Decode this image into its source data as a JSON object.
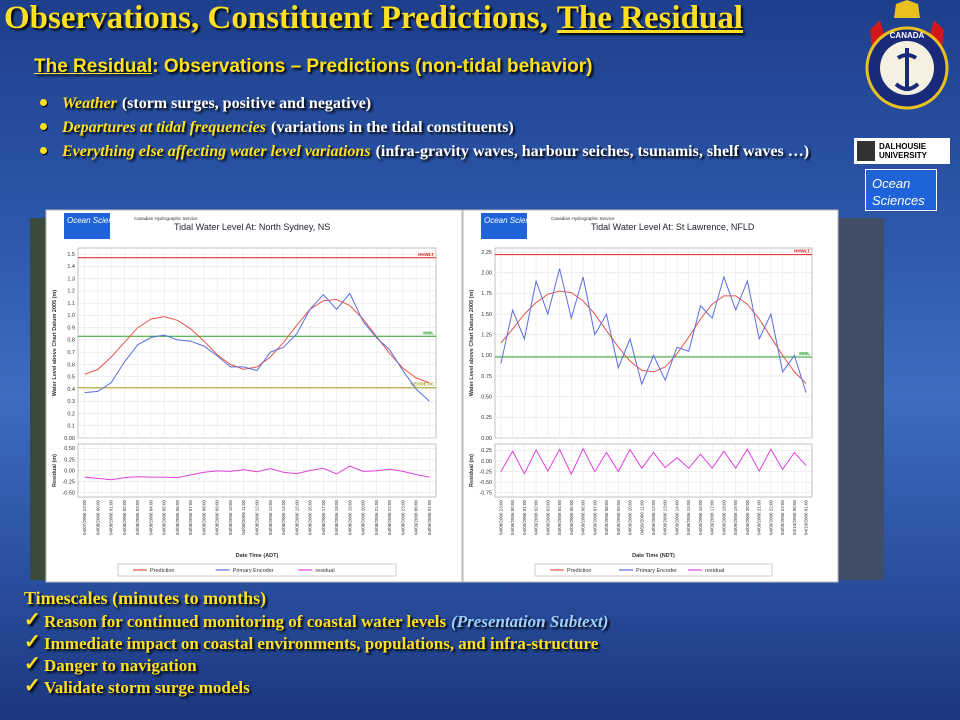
{
  "title": {
    "text": "Observations, Constituent Predictions,",
    "underlined": "The Residual"
  },
  "subtitle": {
    "underlined": "The Residual",
    "text": ": Observations – Predictions (non-tidal behavior)"
  },
  "bullets": [
    {
      "italic": "Weather",
      "text": "(storm surges, positive and negative)"
    },
    {
      "italic": "Departures at tidal frequencies",
      "text": "(variations in the tidal constituents)"
    },
    {
      "italic": "Everything else affecting water level variations",
      "text": "(infra-gravity waves, harbour seiches, tsunamis, shelf waves …)"
    }
  ],
  "logos": {
    "crest": "CANADA",
    "university": "DALHOUSIE UNIVERSITY",
    "department": "Ocean Sciences"
  },
  "charts": [
    {
      "header_logo": "Ocean Sciences",
      "agency": "Canadian Hydrographic Service",
      "title": "Tidal Water Level At: North Sydney, NS",
      "y_label": "Water Level above Chart Datum 2005 (m)",
      "x_label": "Date Time (ADT)",
      "x": [
        0,
        1,
        2,
        3,
        4,
        5,
        6,
        7,
        8,
        9,
        10,
        11,
        12,
        13,
        14,
        15,
        16,
        17,
        18,
        19,
        20,
        21,
        22,
        23,
        24,
        25,
        26
      ],
      "xlim": [
        -0.5,
        26.5
      ],
      "xticks": [
        {
          "value": 0,
          "label": "04/07/2006 23:00"
        },
        {
          "value": 1,
          "label": "04/08/2006 00:00"
        },
        {
          "value": 2,
          "label": "04/08/2006 01:00"
        },
        {
          "value": 3,
          "label": "04/08/2006 02:00"
        },
        {
          "value": 4,
          "label": "04/08/2006 03:00"
        },
        {
          "value": 5,
          "label": "04/08/2006 04:00"
        },
        {
          "value": 6,
          "label": "04/08/2006 05:00"
        },
        {
          "value": 7,
          "label": "04/08/2006 06:00"
        },
        {
          "value": 8,
          "label": "04/08/2006 07:00"
        },
        {
          "value": 9,
          "label": "04/08/2006 08:00"
        },
        {
          "value": 10,
          "label": "04/08/2006 09:00"
        },
        {
          "value": 11,
          "label": "04/08/2006 10:00"
        },
        {
          "value": 12,
          "label": "04/08/2006 11:00"
        },
        {
          "value": 13,
          "label": "04/08/2006 12:00"
        },
        {
          "value": 14,
          "label": "04/08/2006 13:00"
        },
        {
          "value": 15,
          "label": "04/08/2006 14:00"
        },
        {
          "value": 16,
          "label": "04/08/2006 15:00"
        },
        {
          "value": 17,
          "label": "04/08/2006 16:00"
        },
        {
          "value": 18,
          "label": "04/08/2006 17:00"
        },
        {
          "value": 19,
          "label": "04/08/2006 18:00"
        },
        {
          "value": 20,
          "label": "04/08/2006 19:00"
        },
        {
          "value": 21,
          "label": "04/08/2006 20:00"
        },
        {
          "value": 22,
          "label": "04/08/2006 21:00"
        },
        {
          "value": 23,
          "label": "04/08/2006 22:00"
        },
        {
          "value": 24,
          "label": "04/08/2006 23:00"
        },
        {
          "value": 25,
          "label": "04/09/2006 00:00"
        },
        {
          "value": 26,
          "label": "04/09/2006 01:00"
        }
      ],
      "main": {
        "ylim": [
          0,
          1.55
        ],
        "yticks": [
          1.5,
          1.4,
          1.3,
          1.2,
          1.1,
          {
            "value": 1,
            "label": "1.0"
          },
          0.9,
          0.8,
          0.7,
          0.6,
          0.5,
          0.4,
          0.3,
          0.2,
          0.1,
          {
            "value": 0,
            "label": "0.00"
          }
        ],
        "series": [
          {
            "name": "Prediction",
            "color": "#e8554a",
            "values": [
              0.52,
              0.56,
              0.66,
              0.78,
              0.9,
              0.97,
              0.99,
              0.96,
              0.89,
              0.79,
              0.68,
              0.6,
              0.56,
              0.58,
              0.66,
              0.78,
              0.92,
              1.05,
              1.12,
              1.13,
              1.08,
              0.97,
              0.83,
              0.69,
              0.57,
              0.49,
              0.45
            ]
          },
          {
            "name": "Primary Encoder",
            "color": "#5a6ee0",
            "values": [
              0.37,
              0.38,
              0.45,
              0.62,
              0.76,
              0.82,
              0.84,
              0.8,
              0.79,
              0.75,
              0.67,
              0.58,
              0.58,
              0.55,
              0.7,
              0.74,
              0.85,
              1.05,
              1.17,
              1.05,
              1.18,
              0.95,
              0.82,
              0.72,
              0.55,
              0.4,
              0.3
            ]
          }
        ],
        "reference_lines": [
          {
            "label": "HHWLT",
            "value": 1.47,
            "color": "#e02020"
          },
          {
            "label": "MWL",
            "value": 0.83,
            "color": "#28a028"
          },
          {
            "label": "GEODETIC",
            "value": 0.41,
            "color": "#a0a020"
          }
        ]
      },
      "residual": {
        "y_label": "Residual (m)",
        "ylim": [
          -0.6,
          0.6
        ],
        "yticks": [
          {
            "value": 0.5,
            "label": "0.50"
          },
          0.25,
          {
            "value": 0,
            "label": "0.00"
          },
          -0.25,
          {
            "value": -0.5,
            "label": "-0.50"
          }
        ],
        "series": [
          {
            "name": "residual",
            "color": "#e040e0",
            "values": [
              -0.15,
              -0.18,
              -0.21,
              -0.16,
              -0.14,
              -0.15,
              -0.15,
              -0.16,
              -0.1,
              -0.04,
              -0.01,
              -0.02,
              0.02,
              -0.03,
              0.04,
              -0.04,
              -0.07,
              0,
              0.05,
              -0.08,
              0.1,
              -0.02,
              -0.01,
              0.03,
              -0.02,
              -0.09,
              -0.15
            ]
          }
        ]
      }
    },
    {
      "header_logo": "Ocean Sciences",
      "agency": "Canadian Hydrographic Service",
      "title": "Tidal Water Level At: St Lawrence, NFLD",
      "y_label": "Water Level above Chart Datum 2005 (m)",
      "x_label": "Date Time (NDT)",
      "x": [
        0,
        1,
        2,
        3,
        4,
        5,
        6,
        7,
        8,
        9,
        10,
        11,
        12,
        13,
        14,
        15,
        16,
        17,
        18,
        19,
        20,
        21,
        22,
        23,
        24,
        25,
        26
      ],
      "xlim": [
        -0.5,
        26.5
      ],
      "xticks": [
        {
          "value": 0,
          "label": "04/08/2006 23:00"
        },
        {
          "value": 1,
          "label": "04/09/2006 00:00"
        },
        {
          "value": 2,
          "label": "04/09/2006 01:00"
        },
        {
          "value": 3,
          "label": "04/09/2006 02:00"
        },
        {
          "value": 4,
          "label": "04/09/2006 03:00"
        },
        {
          "value": 5,
          "label": "04/09/2006 04:00"
        },
        {
          "value": 6,
          "label": "04/09/2006 05:00"
        },
        {
          "value": 7,
          "label": "04/09/2006 06:00"
        },
        {
          "value": 8,
          "label": "04/09/2006 07:00"
        },
        {
          "value": 9,
          "label": "04/09/2006 08:00"
        },
        {
          "value": 10,
          "label": "04/09/2006 09:00"
        },
        {
          "value": 11,
          "label": "04/09/2006 10:00"
        },
        {
          "value": 12,
          "label": "04/09/2006 11:00"
        },
        {
          "value": 13,
          "label": "04/09/2006 12:00"
        },
        {
          "value": 14,
          "label": "04/09/2006 13:00"
        },
        {
          "value": 15,
          "label": "04/09/2006 14:00"
        },
        {
          "value": 16,
          "label": "04/09/2006 15:00"
        },
        {
          "value": 17,
          "label": "04/09/2006 16:00"
        },
        {
          "value": 18,
          "label": "04/09/2006 17:00"
        },
        {
          "value": 19,
          "label": "04/09/2006 18:00"
        },
        {
          "value": 20,
          "label": "04/09/2006 19:00"
        },
        {
          "value": 21,
          "label": "04/09/2006 20:00"
        },
        {
          "value": 22,
          "label": "04/09/2006 21:00"
        },
        {
          "value": 23,
          "label": "04/09/2006 22:00"
        },
        {
          "value": 24,
          "label": "04/09/2006 23:00"
        },
        {
          "value": 25,
          "label": "04/10/2006 00:00"
        },
        {
          "value": 26,
          "label": "04/10/2006 01:00"
        }
      ],
      "main": {
        "ylim": [
          0,
          2.3
        ],
        "yticks": [
          2.25,
          {
            "value": 2,
            "label": "2.00"
          },
          1.75,
          {
            "value": 1.5,
            "label": "1.50"
          },
          1.25,
          {
            "value": 1,
            "label": "1.00"
          },
          0.75,
          {
            "value": 0.5,
            "label": "0.50"
          },
          0.25,
          {
            "value": 0,
            "label": "0.00"
          }
        ],
        "series": [
          {
            "name": "Prediction",
            "color": "#e8554a",
            "values": [
              1.15,
              1.32,
              1.5,
              1.64,
              1.74,
              1.78,
              1.76,
              1.66,
              1.5,
              1.3,
              1.1,
              0.93,
              0.82,
              0.8,
              0.86,
              1.02,
              1.22,
              1.44,
              1.62,
              1.72,
              1.72,
              1.62,
              1.44,
              1.22,
              1,
              0.8,
              0.66
            ]
          },
          {
            "name": "Primary Encoder",
            "color": "#5a6ee0",
            "values": [
              0.9,
              1.55,
              1.2,
              1.9,
              1.5,
              2.05,
              1.45,
              1.95,
              1.25,
              1.5,
              0.85,
              1.2,
              0.65,
              1,
              0.7,
              1.1,
              1.05,
              1.6,
              1.45,
              1.95,
              1.55,
              1.9,
              1.2,
              1.5,
              0.8,
              1,
              0.55
            ]
          }
        ],
        "reference_lines": [
          {
            "label": "HHWLT",
            "value": 2.22,
            "color": "#e02020"
          },
          {
            "label": "MWL",
            "value": 0.98,
            "color": "#28a028"
          }
        ]
      },
      "residual": {
        "y_label": "Residual (m)",
        "ylim": [
          -0.85,
          0.4
        ],
        "yticks": [
          0.25,
          {
            "value": 0,
            "label": "0.00"
          },
          -0.25,
          {
            "value": -0.5,
            "label": "-0.50"
          },
          -0.75
        ],
        "series": [
          {
            "name": "residual",
            "color": "#e040e0",
            "values": [
              -0.25,
              0.23,
              -0.3,
              0.26,
              -0.24,
              0.27,
              -0.31,
              0.29,
              -0.25,
              0.2,
              -0.25,
              0.27,
              -0.17,
              0.2,
              -0.16,
              0.08,
              -0.17,
              0.16,
              -0.17,
              0.23,
              -0.17,
              0.28,
              -0.24,
              0.28,
              -0.2,
              0.2,
              -0.11
            ]
          }
        ]
      }
    }
  ],
  "footer": {
    "heading": "Timescales (minutes to months)",
    "items": [
      {
        "text": "Reason for continued monitoring of coastal water levels",
        "subtext": "(Presentation Subtext)"
      },
      {
        "text": "Immediate impact on coastal environments, populations, and infra-structure"
      },
      {
        "text": "Danger to navigation"
      },
      {
        "text": "Validate storm surge models"
      }
    ]
  }
}
